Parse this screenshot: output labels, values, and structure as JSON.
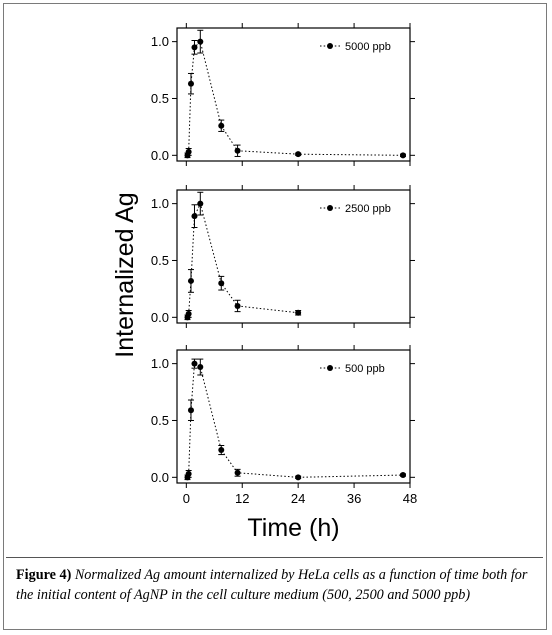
{
  "caption": {
    "label": "Figure 4)",
    "text": " Normalized Ag amount internalized by HeLa cells as a function of time both for the initial content of AgNP in the cell culture medium (500, 2500 and 5000 ppb)"
  },
  "colors": {
    "ink": "#000000",
    "frame": "#7a7a7a"
  },
  "chart_data": {
    "type": "scatter",
    "line_style": "dotted",
    "ylabel": "Internalized  Ag",
    "xlabel": "Time (h)",
    "xlim": [
      -2,
      48
    ],
    "ylim": [
      -0.05,
      1.12
    ],
    "x_ticks": [
      0,
      12,
      24,
      36,
      48
    ],
    "x_tick_labels": [
      "0",
      "12",
      "24",
      "36",
      "48"
    ],
    "y_ticks": [
      0.0,
      0.5,
      1.0
    ],
    "y_tick_labels": [
      "0.0",
      "0.5",
      "1.0"
    ],
    "legend_position": "top-right",
    "panels": [
      {
        "series_name": "5000 ppb",
        "points": [
          {
            "x": 0.25,
            "y": 0.0,
            "err": 0.02
          },
          {
            "x": 0.5,
            "y": 0.03,
            "err": 0.03
          },
          {
            "x": 1,
            "y": 0.63,
            "err": 0.09
          },
          {
            "x": 1.75,
            "y": 0.95,
            "err": 0.06
          },
          {
            "x": 3,
            "y": 1.0,
            "err": 0.1
          },
          {
            "x": 7.5,
            "y": 0.26,
            "err": 0.05
          },
          {
            "x": 11,
            "y": 0.04,
            "err": 0.05
          },
          {
            "x": 24,
            "y": 0.01,
            "err": 0.01
          },
          {
            "x": 46.5,
            "y": 0.0,
            "err": 0.01
          }
        ]
      },
      {
        "series_name": "2500 ppb",
        "points": [
          {
            "x": 0.25,
            "y": 0.0,
            "err": 0.02
          },
          {
            "x": 0.5,
            "y": 0.03,
            "err": 0.03
          },
          {
            "x": 1,
            "y": 0.32,
            "err": 0.1
          },
          {
            "x": 1.75,
            "y": 0.89,
            "err": 0.1
          },
          {
            "x": 3,
            "y": 1.0,
            "err": 0.1
          },
          {
            "x": 7.5,
            "y": 0.3,
            "err": 0.06
          },
          {
            "x": 11,
            "y": 0.1,
            "err": 0.05
          },
          {
            "x": 24,
            "y": 0.04,
            "err": 0.02
          }
        ]
      },
      {
        "series_name": "500 ppb",
        "points": [
          {
            "x": 0.25,
            "y": 0.0,
            "err": 0.02
          },
          {
            "x": 0.5,
            "y": 0.03,
            "err": 0.03
          },
          {
            "x": 1,
            "y": 0.59,
            "err": 0.09
          },
          {
            "x": 1.75,
            "y": 1.0,
            "err": 0.04
          },
          {
            "x": 3,
            "y": 0.97,
            "err": 0.07
          },
          {
            "x": 7.5,
            "y": 0.24,
            "err": 0.04
          },
          {
            "x": 11,
            "y": 0.04,
            "err": 0.03
          },
          {
            "x": 24,
            "y": 0.0,
            "err": 0.01
          },
          {
            "x": 46.5,
            "y": 0.02,
            "err": 0.01
          }
        ]
      }
    ]
  }
}
